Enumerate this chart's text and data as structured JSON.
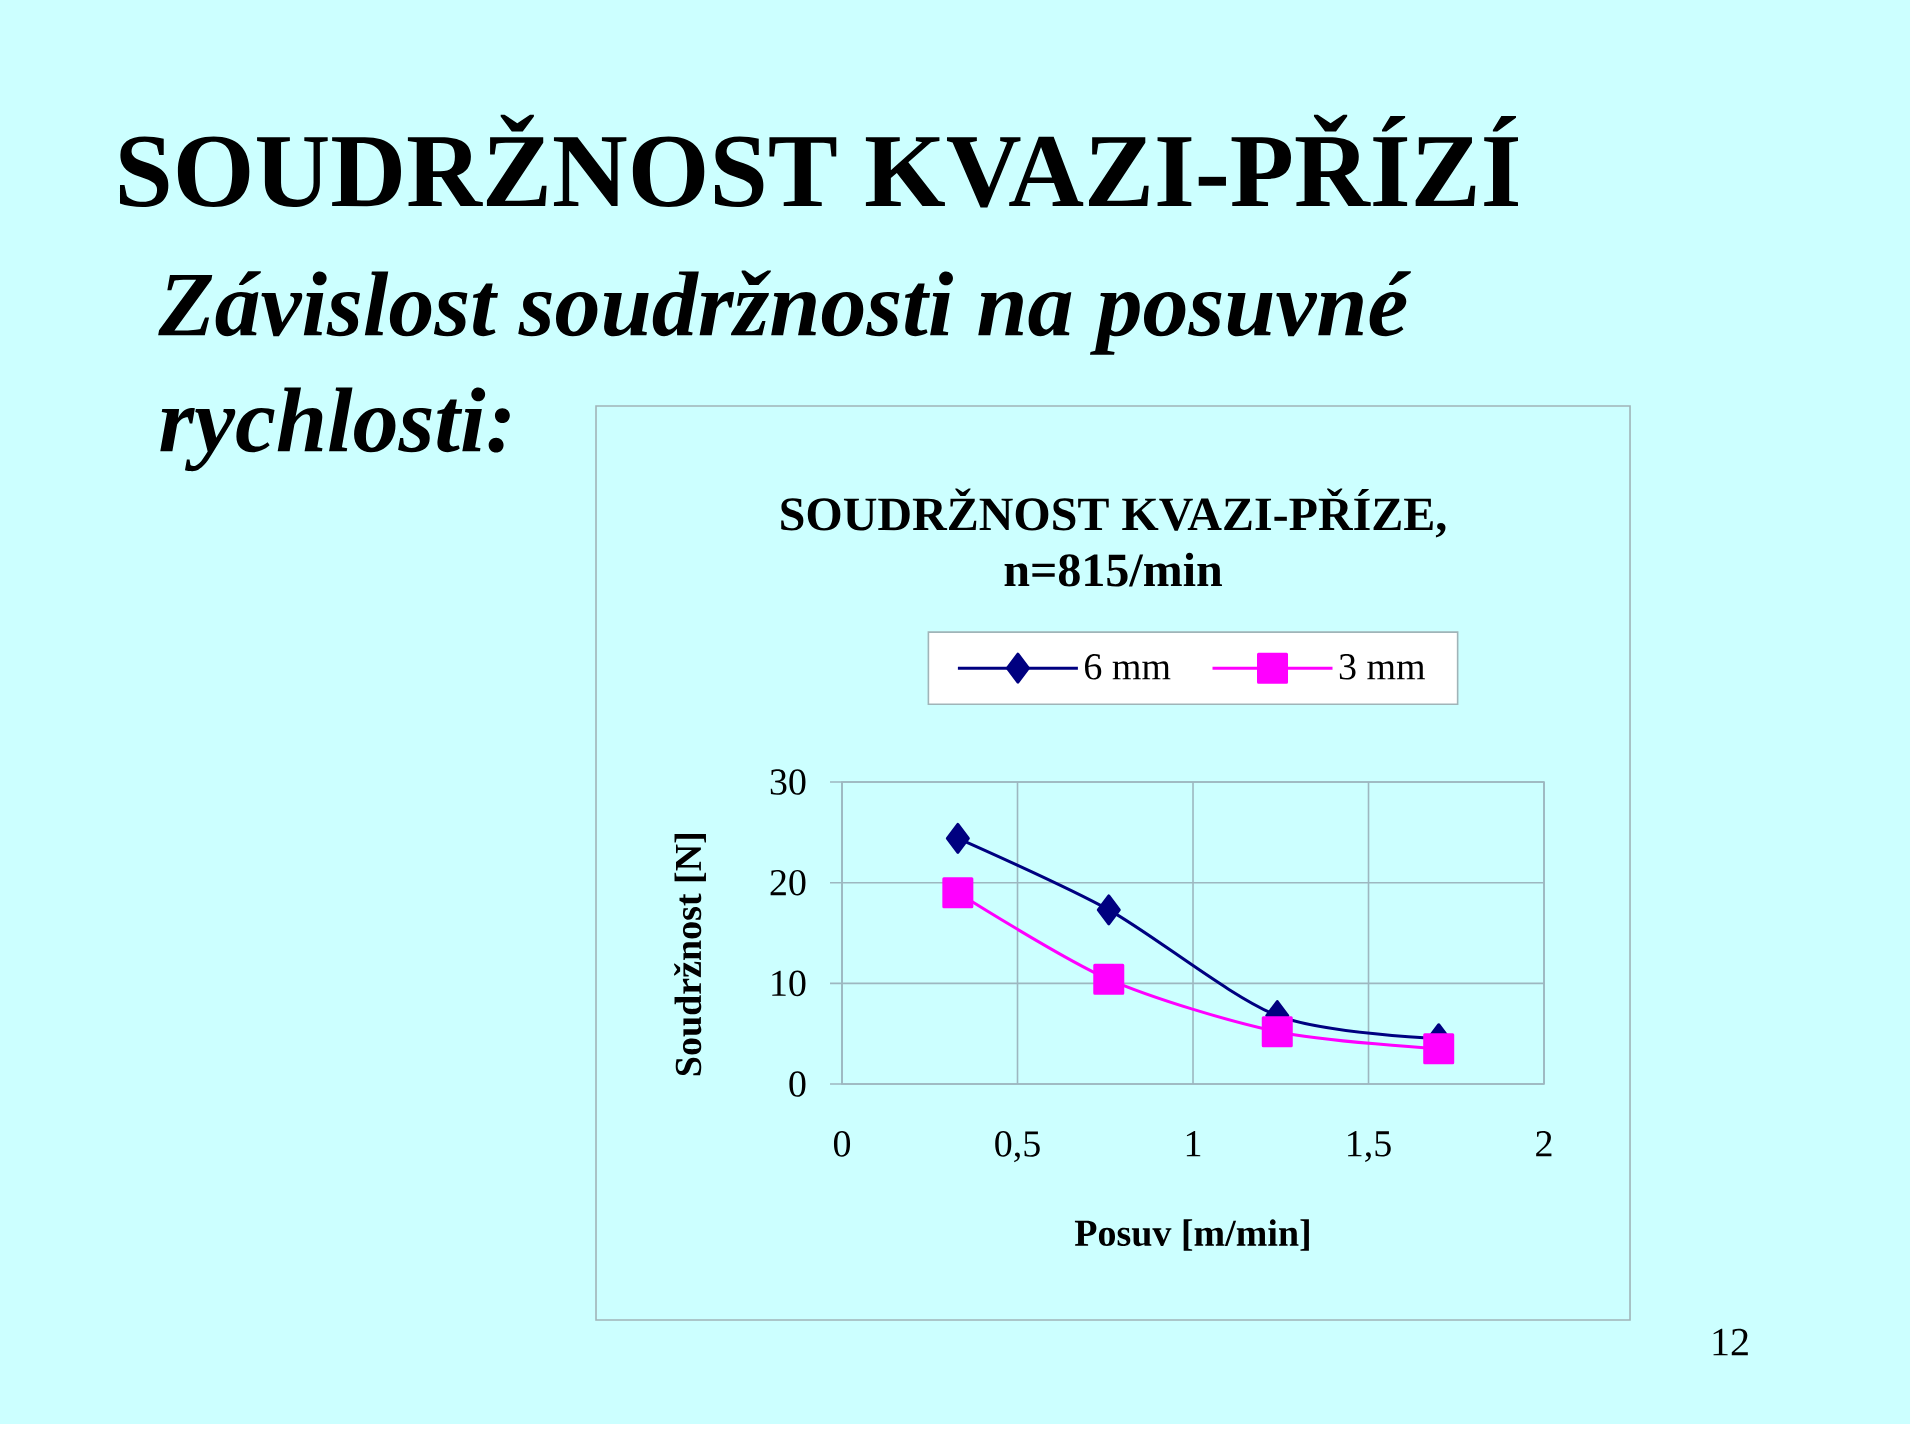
{
  "chart_data": {
    "type": "line",
    "title": "SOUDRŽNOST KVAZI-PŘÍZÍ",
    "subtitle": "Závislost soudržnosti na posuvné rychlosti:",
    "annotations": [
      "SOUDRŽNOST KVAZI-PŘÍZE, n=815/min",
      "12"
    ],
    "xlabel": "Posuv [m/min]",
    "ylabel": "Soudržnost [N]",
    "x": [
      0.33,
      0.76,
      1.24,
      1.7
    ],
    "series": [
      {
        "name": "6 mm",
        "color": "#000080",
        "marker": "diamond",
        "values": [
          24.4,
          17.3,
          6.8,
          4.5
        ]
      },
      {
        "name": "3 mm",
        "color": "#ff00ff",
        "marker": "square",
        "values": [
          19.0,
          10.4,
          5.2,
          3.5
        ]
      }
    ],
    "xlim": [
      0,
      2
    ],
    "xticks": [
      0,
      {
        "value": 0.5,
        "label": "0,5"
      },
      1,
      {
        "value": 1.5,
        "label": "1,5"
      },
      2
    ],
    "ylim": [
      0,
      30
    ],
    "yticks": [
      0,
      10,
      20,
      30
    ],
    "grid": true,
    "legend": "top"
  }
}
